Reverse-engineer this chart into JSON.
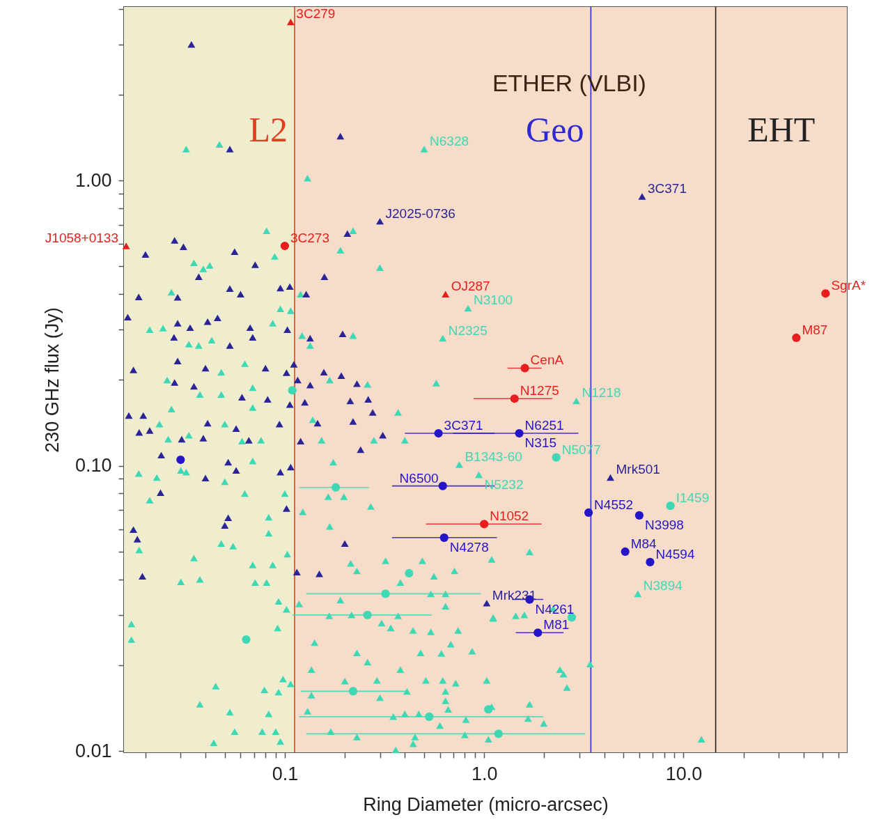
{
  "chart_data": {
    "type": "scatter",
    "xlabel": "Ring Diameter (micro-arcsec)",
    "ylabel": "230 GHz flux (Jy)",
    "log": "xy",
    "xlim": [
      0.0156,
      66
    ],
    "ylim": [
      0.0099,
      4.06
    ],
    "xticks": [
      {
        "value": 0.02,
        "label": null
      },
      {
        "value": 0.03,
        "label": null
      },
      {
        "value": 0.04,
        "label": null
      },
      {
        "value": 0.05,
        "label": null
      },
      {
        "value": 0.06,
        "label": null
      },
      {
        "value": 0.07,
        "label": null
      },
      {
        "value": 0.08,
        "label": null
      },
      {
        "value": 0.09,
        "label": null
      },
      0.1,
      {
        "value": 0.2,
        "label": null
      },
      {
        "value": 0.3,
        "label": null
      },
      {
        "value": 0.4,
        "label": null
      },
      {
        "value": 0.5,
        "label": null
      },
      {
        "value": 0.6,
        "label": null
      },
      {
        "value": 0.7,
        "label": null
      },
      {
        "value": 0.8,
        "label": null
      },
      {
        "value": 0.9,
        "label": null
      },
      {
        "value": 1,
        "label": "1.0"
      },
      {
        "value": 2,
        "label": null
      },
      {
        "value": 3,
        "label": null
      },
      {
        "value": 4,
        "label": null
      },
      {
        "value": 5,
        "label": null
      },
      {
        "value": 6,
        "label": null
      },
      {
        "value": 7,
        "label": null
      },
      {
        "value": 8,
        "label": null
      },
      {
        "value": 9,
        "label": null
      },
      {
        "value": 10,
        "label": "10.0"
      },
      {
        "value": 20,
        "label": null
      },
      {
        "value": 30,
        "label": null
      },
      {
        "value": 40,
        "label": null
      },
      {
        "value": 50,
        "label": null
      },
      {
        "value": 60,
        "label": null
      }
    ],
    "yticks": [
      0.01,
      {
        "value": 0.02,
        "label": null
      },
      {
        "value": 0.03,
        "label": null
      },
      {
        "value": 0.04,
        "label": null
      },
      {
        "value": 0.05,
        "label": null
      },
      {
        "value": 0.06,
        "label": null
      },
      {
        "value": 0.07,
        "label": null
      },
      {
        "value": 0.08,
        "label": null
      },
      {
        "value": 0.09,
        "label": null
      },
      {
        "value": 0.1,
        "label": "0.10"
      },
      {
        "value": 0.2,
        "label": null
      },
      {
        "value": 0.3,
        "label": null
      },
      {
        "value": 0.4,
        "label": null
      },
      {
        "value": 0.5,
        "label": null
      },
      {
        "value": 0.6,
        "label": null
      },
      {
        "value": 0.7,
        "label": null
      },
      {
        "value": 0.8,
        "label": null
      },
      {
        "value": 0.9,
        "label": null
      },
      {
        "value": 1,
        "label": "1.00"
      },
      {
        "value": 2,
        "label": null
      },
      {
        "value": 3,
        "label": null
      },
      {
        "value": 4,
        "label": null
      }
    ],
    "bands": [
      {
        "axis": "x",
        "from": 0.0156,
        "to": 0.112,
        "color": "#f0edcf"
      },
      {
        "axis": "x",
        "from": 0.112,
        "to": 66,
        "color": "#f7dcc9"
      }
    ],
    "ref_lines": [
      {
        "axis": "x",
        "value": 0.112,
        "label": "L2",
        "color": "#e0401e"
      },
      {
        "axis": "x",
        "value": 3.43,
        "label": "Geo",
        "color": "#2e2ad0"
      },
      {
        "axis": "x",
        "value": 14.5,
        "label": "EHT",
        "color": "#222222"
      }
    ],
    "series": [
      {
        "color": "#3fd8b4",
        "marker": "triangle",
        "x": [
          0.032,
          0.047,
          0.5,
          0.13,
          0.081,
          0.22,
          0.19,
          0.089,
          0.035,
          0.042,
          0.039,
          0.3,
          0.027,
          0.12,
          0.83,
          0.095,
          0.107,
          0.021,
          0.0245,
          0.087,
          0.122,
          0.22,
          0.62,
          0.033,
          0.037,
          0.043,
          0.063,
          0.048,
          0.0257,
          0.134,
          0.168,
          0.26,
          0.575,
          0.027,
          0.0375,
          0.048,
          0.069,
          0.069,
          0.0235,
          0.05,
          0.138,
          0.37,
          0.026,
          0.033,
          0.061,
          0.076,
          0.153,
          0.28,
          0.4,
          0.175,
          0.069,
          0.0185,
          0.0228,
          0.0301,
          0.032,
          0.05,
          0.063,
          0.021,
          0.1,
          0.123,
          0.168,
          0.083,
          0.083,
          0.048,
          0.055,
          0.27,
          0.165,
          0.198,
          0.035,
          0.0301,
          0.0375,
          0.0186,
          0.069,
          0.087,
          0.071,
          0.081,
          0.103,
          0.214,
          0.23,
          0.32,
          0.49,
          0.71,
          0.56,
          0.38,
          0.54,
          0.64,
          0.64,
          1.11,
          0.093,
          0.102,
          0.118,
          0.19,
          0.167,
          0.216,
          0.306,
          0.34,
          0.37,
          0.44,
          0.54,
          0.74,
          0.092,
          0.017,
          0.017,
          0.141,
          0.23,
          0.26,
          0.48,
          0.61,
          0.68,
          0.87,
          0.136,
          0.38,
          0.2,
          0.29,
          0.51,
          0.62,
          0.72,
          1.03,
          0.045,
          0.098,
          0.107,
          0.079,
          0.093,
          0.136,
          0.41,
          0.64,
          0.0375,
          0.3,
          0.64,
          0.053,
          0.083,
          0.13,
          0.35,
          0.4,
          0.47,
          0.66,
          0.81,
          0.6,
          0.056,
          0.077,
          0.09,
          0.17,
          0.23,
          0.45,
          0.8,
          1.05,
          0.36,
          0.44,
          0.044,
          0.095,
          2.9,
          1.69,
          1.09,
          2.22,
          1.11,
          1.44,
          1.59,
          3.4,
          2.4,
          2.5,
          2.6,
          1.09,
          1.69,
          1.66,
          1.99,
          5.9,
          12.3,
          0.75,
          0.94
        ],
        "values": [
          1.29,
          1.34,
          1.29,
          1.02,
          0.667,
          0.667,
          0.57,
          0.542,
          0.515,
          0.504,
          0.49,
          0.495,
          0.406,
          0.4,
          0.357,
          0.355,
          0.35,
          0.3,
          0.304,
          0.316,
          0.286,
          0.286,
          0.28,
          0.267,
          0.264,
          0.276,
          0.228,
          0.213,
          0.2,
          0.264,
          0.2,
          0.193,
          0.195,
          0.158,
          0.178,
          0.178,
          0.188,
          0.16,
          0.14,
          0.14,
          0.145,
          0.154,
          0.124,
          0.128,
          0.122,
          0.123,
          0.123,
          0.123,
          0.123,
          0.103,
          0.104,
          0.094,
          0.091,
          0.0964,
          0.095,
          0.088,
          0.08,
          0.0758,
          0.08,
          0.069,
          0.0613,
          0.066,
          0.058,
          0.0534,
          0.0523,
          0.072,
          0.078,
          0.078,
          0.0475,
          0.0392,
          0.04,
          0.0507,
          0.0449,
          0.0449,
          0.039,
          0.039,
          0.049,
          0.0455,
          0.0428,
          0.0465,
          0.0465,
          0.0428,
          0.041,
          0.039,
          0.0356,
          0.0356,
          0.0322,
          0.0294,
          0.0335,
          0.0314,
          0.0328,
          0.0338,
          0.0298,
          0.03,
          0.0281,
          0.027,
          0.0298,
          0.0265,
          0.0262,
          0.0265,
          0.027,
          0.0279,
          0.0246,
          0.024,
          0.0221,
          0.0205,
          0.0221,
          0.022,
          0.0237,
          0.0224,
          0.0193,
          0.0193,
          0.0176,
          0.0177,
          0.0177,
          0.0177,
          0.0173,
          0.0177,
          0.0169,
          0.0179,
          0.0172,
          0.0164,
          0.0161,
          0.0157,
          0.0162,
          0.0162,
          0.0146,
          0.0154,
          0.015,
          0.0137,
          0.0135,
          0.0138,
          0.0132,
          0.0135,
          0.0135,
          0.014,
          0.0129,
          0.0123,
          0.0117,
          0.0117,
          0.0117,
          0.0117,
          0.0112,
          0.0112,
          0.0114,
          0.011,
          0.0101,
          0.0106,
          0.0107,
          0.0108,
          0.169,
          0.0499,
          0.047,
          0.0316,
          0.0292,
          0.0298,
          0.03,
          0.0202,
          0.0193,
          0.0186,
          0.0167,
          0.0143,
          0.0146,
          0.013,
          0.0125,
          0.0356,
          0.011,
          0.101,
          0.093
        ]
      },
      {
        "color": "#3fd8b4",
        "marker": "circle",
        "x": [
          2.3,
          8.6,
          0.18,
          0.32,
          0.42,
          0.26,
          0.22,
          0.53,
          1.18,
          0.064,
          1.05,
          2.75,
          0.109
        ],
        "values": [
          0.107,
          0.0724,
          0.084,
          0.0356,
          0.042,
          0.03,
          0.0162,
          0.0132,
          0.0115,
          0.0246,
          0.014,
          0.0294,
          0.184
        ],
        "xerrors": [
          null,
          null,
          [
            0.118,
            0.265
          ],
          [
            0.128,
            0.96
          ],
          null,
          [
            0.109,
            0.546
          ],
          [
            0.12,
            0.41
          ],
          [
            0.118,
            1.98
          ],
          [
            0.128,
            3.22
          ],
          null,
          null,
          null,
          null
        ]
      },
      {
        "color": "#2b2496",
        "marker": "triangle",
        "x": [
          0.034,
          0.053,
          0.19,
          0.3,
          0.206,
          0.028,
          0.031,
          0.02,
          0.056,
          0.071,
          0.037,
          0.158,
          0.053,
          0.06,
          0.095,
          0.106,
          0.128,
          0.0185,
          0.029,
          0.0163,
          0.029,
          0.0335,
          0.041,
          0.046,
          0.067,
          0.069,
          0.103,
          0.0278,
          0.053,
          0.134,
          0.195,
          0.029,
          0.0174,
          0.04,
          0.08,
          0.111,
          0.102,
          0.157,
          0.192,
          0.23,
          0.134,
          0.116,
          0.035,
          0.028,
          0.061,
          0.082,
          0.106,
          0.126,
          0.213,
          0.262,
          0.276,
          0.0165,
          0.0195,
          0.041,
          0.057,
          0.094,
          0.146,
          0.22,
          0.0186,
          0.021,
          0.0304,
          0.039,
          0.066,
          0.12,
          0.24,
          0.31,
          0.024,
          0.052,
          0.057,
          0.095,
          0.107,
          0.04,
          0.0238,
          0.102,
          0.052,
          0.05,
          0.0174,
          0.0182,
          0.2,
          0.0193,
          0.115,
          0.149,
          1.03,
          4.3,
          6.2
        ],
        "values": [
          3.0,
          1.29,
          1.43,
          0.72,
          0.652,
          0.617,
          0.586,
          0.551,
          0.563,
          0.507,
          0.46,
          0.46,
          0.418,
          0.4,
          0.42,
          0.425,
          0.4,
          0.391,
          0.39,
          0.332,
          0.316,
          0.305,
          0.32,
          0.33,
          0.305,
          0.282,
          0.3,
          0.282,
          0.264,
          0.28,
          0.29,
          0.233,
          0.217,
          0.22,
          0.22,
          0.227,
          0.212,
          0.213,
          0.207,
          0.194,
          0.192,
          0.2,
          0.19,
          0.196,
          0.174,
          0.171,
          0.164,
          0.167,
          0.169,
          0.171,
          0.154,
          0.15,
          0.15,
          0.141,
          0.135,
          0.14,
          0.141,
          0.143,
          0.131,
          0.133,
          0.124,
          0.125,
          0.123,
          0.122,
          0.114,
          0.128,
          0.109,
          0.103,
          0.0964,
          0.095,
          0.099,
          0.0906,
          0.0805,
          0.0708,
          0.0658,
          0.0618,
          0.0598,
          0.0553,
          0.0534,
          0.041,
          0.0424,
          0.0418,
          0.033,
          0.091,
          0.88
        ]
      },
      {
        "color": "#2415c8",
        "marker": "circle",
        "x": [
          0.59,
          1.5,
          0.62,
          0.63,
          3.34,
          6.0,
          5.1,
          6.8,
          1.69,
          1.86,
          0.03
        ],
        "values": [
          0.13,
          0.13,
          0.085,
          0.056,
          0.0685,
          0.067,
          0.05,
          0.046,
          0.034,
          0.026,
          0.105
        ],
        "xerrors": [
          [
            0.4,
            1.13
          ],
          [
            0.7,
            2.97
          ],
          [
            0.345,
            1.13
          ],
          [
            0.345,
            1.16
          ],
          null,
          null,
          null,
          null,
          [
            1.38,
            1.98
          ],
          [
            1.44,
            2.5
          ],
          null
        ]
      },
      {
        "color": "#e81e1e",
        "marker": "triangle",
        "x": [
          0.107,
          0.64,
          0.016
        ],
        "values": [
          3.6,
          0.4,
          0.59
        ]
      },
      {
        "color": "#e81e1e",
        "marker": "circle",
        "x": [
          0.1,
          1.6,
          1.42,
          1.0,
          36.8,
          51.6
        ],
        "values": [
          0.59,
          0.22,
          0.172,
          0.0625,
          0.281,
          0.402
        ],
        "xerrors": [
          null,
          [
            1.31,
            1.94
          ],
          [
            0.885,
            2.2
          ],
          [
            0.51,
            1.94
          ],
          null,
          null
        ]
      }
    ],
    "annotations": [
      "ETHER (VLBI)",
      {
        "text": "3C279",
        "x": 0.107,
        "y": 3.6
      },
      {
        "text": "J1058+0133",
        "x": 0.016,
        "y": 0.59
      },
      {
        "text": "3C273",
        "x": 0.1,
        "y": 0.59
      },
      {
        "text": "J2025-0736",
        "x": 0.3,
        "y": 0.72
      },
      {
        "text": "3C371",
        "x": 6.2,
        "y": 0.88
      },
      {
        "text": "N6328",
        "x": 0.5,
        "y": 1.29
      },
      {
        "text": "OJ287",
        "x": 0.64,
        "y": 0.4
      },
      {
        "text": "N3100",
        "x": 0.83,
        "y": 0.357
      },
      {
        "text": "N2325",
        "x": 0.62,
        "y": 0.28
      },
      {
        "text": "CenA",
        "x": 1.6,
        "y": 0.22
      },
      {
        "text": "N1218",
        "x": 2.9,
        "y": 0.169
      },
      {
        "text": "N1275",
        "x": 1.42,
        "y": 0.172
      },
      {
        "text": "3C371",
        "x": 0.59,
        "y": 0.13
      },
      {
        "text": "N6251",
        "x": 1.5,
        "y": 0.13
      },
      {
        "text": "N315",
        "x": 1.5,
        "y": 0.13
      },
      {
        "text": "N5077",
        "x": 2.3,
        "y": 0.107
      },
      {
        "text": "B1343-60",
        "x": 0.75,
        "y": 0.101
      },
      {
        "text": "N5232",
        "x": 0.94,
        "y": 0.093
      },
      {
        "text": "N6500",
        "x": 0.62,
        "y": 0.085
      },
      {
        "text": "Mrk501",
        "x": 4.3,
        "y": 0.091
      },
      {
        "text": "N4552",
        "x": 3.34,
        "y": 0.0685
      },
      {
        "text": "N3998",
        "x": 6.0,
        "y": 0.067
      },
      {
        "text": "I1459",
        "x": 8.6,
        "y": 0.0724
      },
      {
        "text": "N1052",
        "x": 1.0,
        "y": 0.0625
      },
      {
        "text": "N4278",
        "x": 0.63,
        "y": 0.056
      },
      {
        "text": "M84",
        "x": 5.1,
        "y": 0.05
      },
      {
        "text": "N4594",
        "x": 6.8,
        "y": 0.046
      },
      {
        "text": "Mrk231",
        "x": 1.03,
        "y": 0.033
      },
      {
        "text": "N4261",
        "x": 1.69,
        "y": 0.034
      },
      {
        "text": "N3894",
        "x": 5.9,
        "y": 0.0356
      },
      {
        "text": "M81",
        "x": 1.86,
        "y": 0.026
      },
      {
        "text": "M87",
        "x": 36.8,
        "y": 0.281
      },
      {
        "text": "SgrA*",
        "x": 51.6,
        "y": 0.402
      }
    ]
  }
}
